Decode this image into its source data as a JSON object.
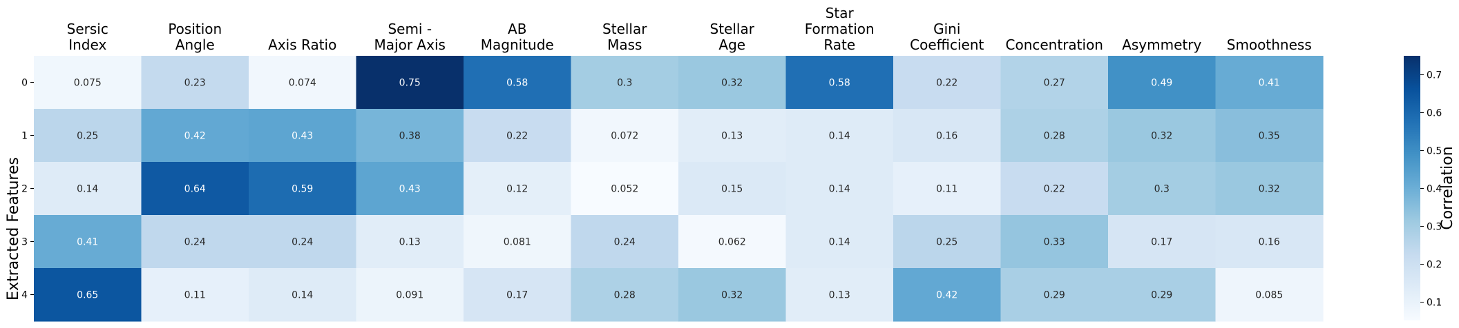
{
  "chart_data": {
    "type": "heatmap",
    "columns": [
      [
        "Sersic",
        "Index"
      ],
      [
        "Position",
        "Angle"
      ],
      [
        "Axis Ratio"
      ],
      [
        "Semi -",
        "Major Axis"
      ],
      [
        "AB",
        "Magnitude"
      ],
      [
        "Stellar",
        "Mass"
      ],
      [
        "Stellar",
        "Age"
      ],
      [
        "Star",
        "Formation",
        "Rate"
      ],
      [
        "Gini",
        "Coefficient"
      ],
      [
        "Concentration"
      ],
      [
        "Asymmetry"
      ],
      [
        "Smoothness"
      ]
    ],
    "rows": [
      "0",
      "1",
      "2",
      "3",
      "4"
    ],
    "ylabel": "Extracted Features",
    "values": [
      [
        "0.075",
        "0.23",
        "0.074",
        "0.75",
        "0.58",
        "0.3",
        "0.32",
        "0.58",
        "0.22",
        "0.27",
        "0.49",
        "0.41"
      ],
      [
        "0.25",
        "0.42",
        "0.43",
        "0.38",
        "0.22",
        "0.072",
        "0.13",
        "0.14",
        "0.16",
        "0.28",
        "0.32",
        "0.35"
      ],
      [
        "0.14",
        "0.64",
        "0.59",
        "0.43",
        "0.12",
        "0.052",
        "0.15",
        "0.14",
        "0.11",
        "0.22",
        "0.3",
        "0.32"
      ],
      [
        "0.41",
        "0.24",
        "0.24",
        "0.13",
        "0.081",
        "0.24",
        "0.062",
        "0.14",
        "0.25",
        "0.33",
        "0.17",
        "0.16"
      ],
      [
        "0.65",
        "0.11",
        "0.14",
        "0.091",
        "0.17",
        "0.28",
        "0.32",
        "0.13",
        "0.42",
        "0.29",
        "0.29",
        "0.085"
      ]
    ],
    "colorbar": {
      "label": "Correlation",
      "range": [
        0.052,
        0.75
      ],
      "ticks": [
        "0.1",
        "0.2",
        "0.3",
        "0.4",
        "0.5",
        "0.6",
        "0.7"
      ]
    },
    "colormap": "Blues"
  }
}
